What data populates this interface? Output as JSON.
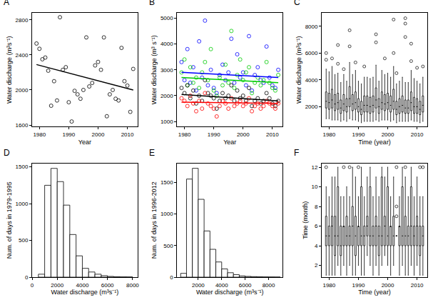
{
  "chart_data": [
    {
      "panel": "A",
      "type": "scatter",
      "x": [
        1979,
        1980,
        1981,
        1982,
        1983,
        1984,
        1985,
        1986,
        1987,
        1988,
        1989,
        1990,
        1991,
        1992,
        1993,
        1994,
        1995,
        1996,
        1997,
        1998,
        1999,
        2000,
        2001,
        2002,
        2003,
        2004,
        2005,
        2006,
        2007,
        2008,
        2009,
        2010,
        2011,
        2012
      ],
      "series": [
        {
          "type": "scatter",
          "color": "#000000",
          "marker": "circle-open",
          "values": [
            2530,
            2470,
            2350,
            2370,
            2220,
            1820,
            2100,
            1880,
            2830,
            2230,
            2260,
            1860,
            1640,
            1990,
            1950,
            1900,
            2000,
            2600,
            2040,
            2080,
            2280,
            2320,
            2230,
            2600,
            1700,
            1950,
            2000,
            1900,
            1880,
            2480,
            2100,
            2050,
            1750,
            2240
          ]
        },
        {
          "type": "line",
          "color": "#000000",
          "line_style": "solid",
          "x": [
            1979,
            2012
          ],
          "values": [
            2290,
            2000
          ]
        }
      ],
      "xlabel": "Year",
      "ylabel": "Water discharge (m³s⁻¹)",
      "xlim": [
        1977.5,
        2013.5
      ],
      "xticks": [
        1980,
        1990,
        2000,
        2010
      ],
      "ylim": [
        1580,
        2880
      ],
      "yticks": [
        1600,
        2000,
        2400,
        2800
      ]
    },
    {
      "panel": "B",
      "type": "scatter",
      "x": [
        1979,
        1980,
        1981,
        1982,
        1983,
        1984,
        1985,
        1986,
        1987,
        1988,
        1989,
        1990,
        1991,
        1992,
        1993,
        1994,
        1995,
        1996,
        1997,
        1998,
        1999,
        2000,
        2001,
        2002,
        2003,
        2004,
        2005,
        2006,
        2007,
        2008,
        2009,
        2010,
        2011,
        2012
      ],
      "series": [
        {
          "type": "scatter",
          "color": "#0000ff",
          "marker": "circle-open",
          "values": [
            3300,
            2600,
            3800,
            2500,
            3100,
            2200,
            4100,
            2700,
            4900,
            2400,
            3000,
            2300,
            2100,
            2800,
            3200,
            2600,
            2900,
            4200,
            2500,
            3600,
            2700,
            2900,
            2400,
            4300,
            2200,
            2800,
            3100,
            2600,
            2500,
            3900,
            2700,
            2400,
            2300,
            3000
          ]
        },
        {
          "type": "scatter",
          "color": "#00cc00",
          "marker": "circle-open",
          "values": [
            2900,
            3400,
            2400,
            3100,
            2500,
            2700,
            2300,
            2900,
            3300,
            2600,
            3800,
            2200,
            2000,
            2700,
            2400,
            3200,
            2500,
            4500,
            2300,
            2800,
            3400,
            2600,
            2900,
            3100,
            2100,
            2500,
            2700,
            2400,
            2600,
            3300,
            2500,
            2300,
            2200,
            2800
          ]
        },
        {
          "type": "scatter",
          "color": "#000000",
          "marker": "circle-open",
          "values": [
            2300,
            2100,
            2400,
            1900,
            2200,
            1700,
            2000,
            1800,
            2600,
            2100,
            2000,
            1900,
            1500,
            1800,
            2100,
            1900,
            2000,
            2400,
            1800,
            2200,
            1900,
            2000,
            1800,
            2300,
            1600,
            1800,
            1900,
            1700,
            1800,
            2100,
            1900,
            1700,
            1600,
            1800
          ]
        },
        {
          "type": "scatter",
          "color": "#ff0000",
          "marker": "circle-open",
          "values": [
            1900,
            1800,
            1600,
            2000,
            1700,
            1400,
            1800,
            1500,
            2100,
            1700,
            1600,
            1500,
            1200,
            1600,
            1800,
            1700,
            1500,
            1900,
            1600,
            1700,
            1800,
            1600,
            1700,
            1900,
            1400,
            1600,
            1700,
            1500,
            1600,
            1800,
            1700,
            1600,
            1500,
            1700
          ]
        },
        {
          "type": "line",
          "color": "#0000ff",
          "line_style": "solid",
          "x": [
            1979,
            2012
          ],
          "values": [
            2900,
            2700
          ]
        },
        {
          "type": "line",
          "color": "#00cc00",
          "line_style": "solid",
          "x": [
            1979,
            2012
          ],
          "values": [
            2700,
            2500
          ]
        },
        {
          "type": "line",
          "color": "#000000",
          "line_style": "solid",
          "x": [
            1979,
            2012
          ],
          "values": [
            2050,
            1800
          ]
        },
        {
          "type": "line",
          "color": "#ff0000",
          "line_style": "solid",
          "x": [
            1979,
            2012
          ],
          "values": [
            1750,
            1700
          ]
        }
      ],
      "xlabel": "Year",
      "ylabel": "Water discharge (m³ s⁻¹)",
      "xlim": [
        1977.5,
        2013.5
      ],
      "xticks": [
        1980,
        1990,
        2000,
        2010
      ],
      "ylim": [
        800,
        5200
      ],
      "yticks": [
        1000,
        2000,
        3000,
        4000,
        5000
      ]
    },
    {
      "panel": "C",
      "type": "box",
      "color": "#000000",
      "x": [
        1979,
        1980,
        1981,
        1982,
        1983,
        1984,
        1985,
        1986,
        1987,
        1988,
        1989,
        1990,
        1991,
        1992,
        1993,
        1994,
        1995,
        1996,
        1997,
        1998,
        1999,
        2000,
        2001,
        2002,
        2003,
        2004,
        2005,
        2006,
        2007,
        2008,
        2009,
        2010,
        2011,
        2012
      ],
      "median": [
        2400,
        2300,
        2500,
        2200,
        2300,
        1900,
        2200,
        2000,
        2600,
        2200,
        2300,
        2000,
        1800,
        2100,
        2100,
        2000,
        2100,
        2500,
        2000,
        2300,
        2200,
        2300,
        2100,
        2400,
        1800,
        2000,
        2100,
        1900,
        1900,
        2300,
        2000,
        2000,
        1800,
        2100
      ],
      "q1": [
        1900,
        1800,
        1900,
        1700,
        1800,
        1500,
        1700,
        1600,
        2000,
        1700,
        1800,
        1600,
        1400,
        1600,
        1600,
        1500,
        1600,
        1900,
        1500,
        1800,
        1700,
        1800,
        1600,
        1800,
        1400,
        1500,
        1600,
        1500,
        1500,
        1700,
        1500,
        1500,
        1400,
        1600
      ],
      "q3": [
        3100,
        3000,
        3300,
        2900,
        3000,
        2500,
        2900,
        2600,
        3500,
        2900,
        3100,
        2600,
        2400,
        2800,
        2800,
        2700,
        2800,
        3400,
        2600,
        3100,
        2900,
        3000,
        2800,
        3300,
        2400,
        2600,
        2800,
        2500,
        2500,
        3100,
        2700,
        2600,
        2400,
        2800
      ],
      "lower": [
        1100,
        1100,
        1000,
        1000,
        1000,
        900,
        1000,
        900,
        1100,
        1000,
        1000,
        900,
        800,
        900,
        900,
        900,
        900,
        1000,
        900,
        1000,
        1000,
        1000,
        900,
        1000,
        800,
        900,
        900,
        900,
        900,
        1000,
        900,
        900,
        800,
        900
      ],
      "upper": [
        4800,
        4600,
        5000,
        4400,
        4500,
        3800,
        4400,
        3900,
        5300,
        4400,
        4700,
        3900,
        3700,
        4200,
        4200,
        4100,
        4200,
        5100,
        3900,
        4700,
        4400,
        4500,
        4200,
        5000,
        3700,
        3900,
        4200,
        3800,
        3800,
        4700,
        4100,
        3900,
        3700,
        4200
      ],
      "outliers": {
        "x": [
          1979,
          1979,
          1981,
          1983,
          1983,
          1985,
          1987,
          1987,
          1989,
          1992,
          1996,
          1996,
          1999,
          2002,
          2002,
          2003,
          2006,
          2006,
          2006,
          2008,
          2008,
          2010,
          2012
        ],
        "values": [
          5500,
          6000,
          5600,
          5200,
          6600,
          4800,
          6500,
          7700,
          5300,
          5000,
          6800,
          7400,
          5600,
          6000,
          8500,
          4500,
          7200,
          8600,
          8200,
          5400,
          6700,
          4900,
          5000
        ]
      },
      "xlabel": "Time (year)",
      "ylabel": "Water discharge (m³s⁻¹)",
      "xlim": [
        1977.5,
        2013.5
      ],
      "xticks": [
        1980,
        1990,
        2000,
        2010
      ],
      "ylim": [
        500,
        9000
      ],
      "yticks": [
        2000,
        4000,
        6000,
        8000
      ]
    },
    {
      "panel": "D",
      "type": "histogram",
      "color": "#000000",
      "bins": [
        500,
        1000,
        1500,
        2000,
        2500,
        3000,
        3500,
        4000,
        4500,
        5000,
        5500,
        6000,
        6500,
        7000,
        7500,
        8000
      ],
      "counts": [
        40,
        1250,
        1480,
        1300,
        980,
        580,
        290,
        120,
        70,
        40,
        20,
        10,
        5,
        3,
        2
      ],
      "xlabel": "Water discharge (m³s⁻¹)",
      "ylabel": "Num. of days in 1979-1995",
      "xlim": [
        0,
        8400
      ],
      "xticks": [
        0,
        2000,
        4000,
        6000,
        8000
      ],
      "ylim": [
        0,
        1550
      ],
      "yticks": [
        0,
        500,
        1000,
        1500
      ]
    },
    {
      "panel": "E",
      "type": "histogram",
      "color": "#000000",
      "bins": [
        500,
        1000,
        1500,
        2000,
        2500,
        3000,
        3500,
        4000,
        4500,
        5000,
        5500,
        6000,
        6500,
        7000,
        7500,
        8000,
        8500,
        9000
      ],
      "counts": [
        60,
        1550,
        1720,
        1230,
        730,
        440,
        240,
        130,
        70,
        40,
        20,
        12,
        8,
        5,
        3,
        2,
        1
      ],
      "xlabel": "Water discharge (m³s⁻¹)",
      "ylabel": "Num. of days in 1996-2012",
      "xlim": [
        200,
        9200
      ],
      "xticks": [
        2000,
        4000,
        6000,
        8000
      ],
      "ylim": [
        0,
        1800
      ],
      "yticks": [
        0,
        500,
        1000,
        1500
      ]
    },
    {
      "panel": "F",
      "type": "box",
      "color": "#000000",
      "x": [
        1979,
        1980,
        1981,
        1982,
        1983,
        1984,
        1985,
        1986,
        1987,
        1988,
        1989,
        1990,
        1991,
        1992,
        1993,
        1994,
        1995,
        1996,
        1997,
        1998,
        1999,
        2000,
        2001,
        2002,
        2003,
        2004,
        2005,
        2006,
        2007,
        2008,
        2009,
        2010,
        2011,
        2012
      ],
      "median": [
        5,
        5,
        6,
        5,
        5,
        4,
        6,
        5,
        5,
        6,
        5,
        6,
        5,
        5,
        6,
        5,
        5,
        6,
        5,
        5,
        6,
        5,
        6,
        5,
        5,
        6,
        5,
        5,
        5,
        6,
        5,
        6,
        4,
        5
      ],
      "q1": [
        4,
        4,
        4,
        3,
        4,
        3,
        4,
        4,
        4,
        4,
        3,
        4,
        4,
        4,
        5,
        4,
        4,
        4,
        3,
        4,
        4,
        4,
        4,
        4,
        2,
        4,
        4,
        4,
        4,
        4,
        4,
        4,
        3,
        4
      ],
      "q3": [
        7,
        6,
        7,
        7,
        10,
        6,
        6,
        7,
        6,
        8,
        7,
        6,
        10,
        6,
        7,
        10,
        6,
        7,
        6,
        11,
        7,
        10,
        6,
        7,
        3,
        6,
        10,
        7,
        6,
        10,
        6,
        7,
        6,
        6
      ],
      "lower": [
        1,
        1,
        1,
        1,
        2,
        1,
        2,
        1,
        2,
        1,
        1,
        2,
        1,
        1,
        3,
        2,
        1,
        2,
        1,
        2,
        3,
        2,
        1,
        2,
        1,
        1,
        2,
        1,
        1,
        2,
        1,
        2,
        1,
        1
      ],
      "upper": [
        10,
        9,
        11,
        11,
        12,
        9,
        9,
        10,
        9,
        12,
        11,
        9,
        12,
        9,
        11,
        12,
        9,
        11,
        9,
        12,
        11,
        12,
        9,
        11,
        5,
        9,
        12,
        11,
        9,
        12,
        9,
        11,
        9,
        9
      ],
      "outliers": {
        "x": [
          1979,
          1985,
          1987,
          1990,
          2003,
          2003,
          2003,
          2006,
          2011,
          2012
        ],
        "values": [
          12,
          12,
          12,
          12,
          7,
          8,
          12,
          12,
          12,
          12
        ]
      },
      "xlabel": "Time (year)",
      "ylabel": "Time (month)",
      "xlim": [
        1977.5,
        2013.5
      ],
      "xticks": [
        1980,
        1990,
        2000,
        2010
      ],
      "ylim": [
        0.8,
        12.4
      ],
      "yticks": [
        2,
        4,
        6,
        8,
        10,
        12
      ]
    }
  ]
}
